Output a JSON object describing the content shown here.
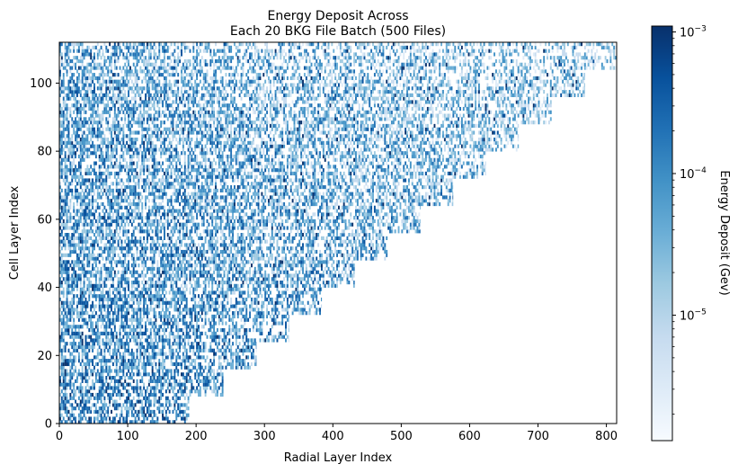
{
  "chart_data": {
    "type": "heatmap",
    "title_lines": [
      "Energy Deposit Across",
      "Each 20 BKG File Batch (500 Files)"
    ],
    "xlabel": "Radial Layer Index",
    "ylabel": "Cell Layer Index",
    "xlim": [
      0,
      815
    ],
    "ylim": [
      0,
      112
    ],
    "x_ticks": [
      0,
      100,
      200,
      300,
      400,
      500,
      600,
      700,
      800
    ],
    "y_ticks": [
      0,
      20,
      40,
      60,
      80,
      100
    ],
    "colorbar": {
      "label": "Energy Deposit (Gev)",
      "scale": "log",
      "range": [
        1.3e-06,
        0.0011
      ],
      "ticks": [
        {
          "value": 0.001,
          "base": "10",
          "exp": "−3"
        },
        {
          "value": 0.0001,
          "base": "10",
          "exp": "−4"
        },
        {
          "value": 1e-05,
          "base": "10",
          "exp": "−5"
        }
      ],
      "colormap": [
        "#f7fbff",
        "#deebf7",
        "#c6dbef",
        "#9ecae1",
        "#6baed6",
        "#4292c6",
        "#2171b5",
        "#08519c",
        "#08306b"
      ]
    },
    "staircase_edge": [
      {
        "y_start": 0,
        "y_end": 8,
        "x_max": 190
      },
      {
        "y_start": 8,
        "y_end": 16,
        "x_max": 240
      },
      {
        "y_start": 16,
        "y_end": 24,
        "x_max": 288
      },
      {
        "y_start": 24,
        "y_end": 32,
        "x_max": 336
      },
      {
        "y_start": 32,
        "y_end": 40,
        "x_max": 384
      },
      {
        "y_start": 40,
        "y_end": 48,
        "x_max": 432
      },
      {
        "y_start": 48,
        "y_end": 56,
        "x_max": 480
      },
      {
        "y_start": 56,
        "y_end": 64,
        "x_max": 528
      },
      {
        "y_start": 64,
        "y_end": 72,
        "x_max": 576
      },
      {
        "y_start": 72,
        "y_end": 80,
        "x_max": 624
      },
      {
        "y_start": 80,
        "y_end": 88,
        "x_max": 672
      },
      {
        "y_start": 88,
        "y_end": 96,
        "x_max": 720
      },
      {
        "y_start": 96,
        "y_end": 104,
        "x_max": 768
      },
      {
        "y_start": 104,
        "y_end": 112,
        "x_max": 815
      }
    ]
  }
}
